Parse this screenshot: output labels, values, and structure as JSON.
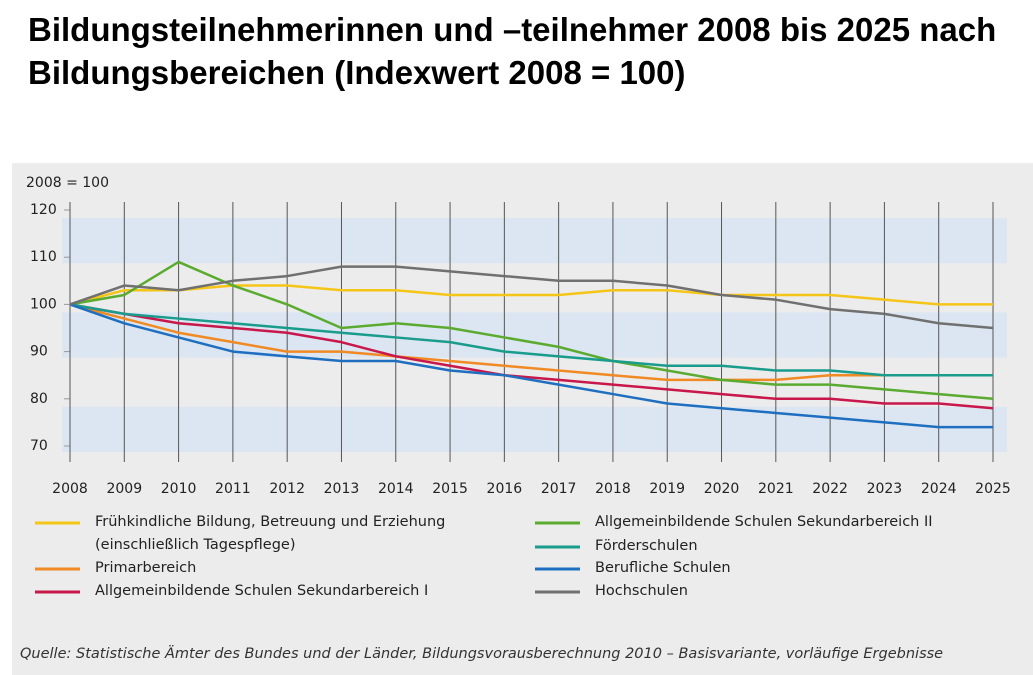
{
  "chart_data": {
    "type": "line",
    "title": "Bildungsteilnehmerinnen und –teilnehmer 2008 bis 2025 nach Bildungsbereichen (Indexwert 2008 = 100)",
    "ylabel": "2008 = 100",
    "source": "Quelle: Statistische Ämter des Bundes und der Länder, Bildungsvorausberechnung 2010 – Basisvariante, vorläufige Ergebnisse",
    "x": [
      2008,
      2009,
      2010,
      2011,
      2012,
      2013,
      2014,
      2015,
      2016,
      2017,
      2018,
      2019,
      2020,
      2021,
      2022,
      2023,
      2024,
      2025
    ],
    "xlim": [
      2008,
      2025
    ],
    "xticks": [
      2008,
      2009,
      2010,
      2011,
      2012,
      2013,
      2014,
      2015,
      2016,
      2017,
      2018,
      2019,
      2020,
      2021,
      2022,
      2023,
      2024,
      2025
    ],
    "ylim": [
      70,
      120
    ],
    "yticks": [
      70,
      80,
      90,
      100,
      110,
      120
    ],
    "grid": true,
    "series": [
      {
        "name": "Frühkindliche Bildung, Betreuung und Erziehung (einschließlich Tagespflege)",
        "color": "#f5c518",
        "values": [
          100,
          103,
          103,
          104,
          104,
          103,
          103,
          102,
          102,
          102,
          103,
          103,
          102,
          102,
          102,
          101,
          100,
          100
        ]
      },
      {
        "name": "Primarbereich",
        "color": "#f08a24",
        "values": [
          100,
          97,
          94,
          92,
          90,
          90,
          89,
          88,
          87,
          86,
          85,
          84,
          84,
          84,
          85,
          85,
          85,
          85
        ]
      },
      {
        "name": "Allgemeinbildende Schulen Sekundarbereich I",
        "color": "#c8174a",
        "values": [
          100,
          98,
          96,
          95,
          94,
          92,
          89,
          87,
          85,
          84,
          83,
          82,
          81,
          80,
          80,
          79,
          79,
          78
        ]
      },
      {
        "name": "Allgemeinbildende Schulen Sekundarbereich II",
        "color": "#5aab30",
        "values": [
          100,
          102,
          109,
          104,
          100,
          95,
          96,
          95,
          93,
          91,
          88,
          86,
          84,
          83,
          83,
          82,
          81,
          80
        ]
      },
      {
        "name": "Förderschulen",
        "color": "#1a9c8c",
        "values": [
          100,
          98,
          97,
          96,
          95,
          94,
          93,
          92,
          90,
          89,
          88,
          87,
          87,
          86,
          86,
          85,
          85,
          85
        ]
      },
      {
        "name": "Berufliche Schulen",
        "color": "#1f6fc0",
        "values": [
          100,
          96,
          93,
          90,
          89,
          88,
          88,
          86,
          85,
          83,
          81,
          79,
          78,
          77,
          76,
          75,
          74,
          74
        ]
      },
      {
        "name": "Hochschulen",
        "color": "#707070",
        "values": [
          100,
          104,
          103,
          105,
          106,
          108,
          108,
          107,
          106,
          105,
          105,
          104,
          102,
          101,
          99,
          98,
          96,
          95
        ]
      }
    ]
  }
}
